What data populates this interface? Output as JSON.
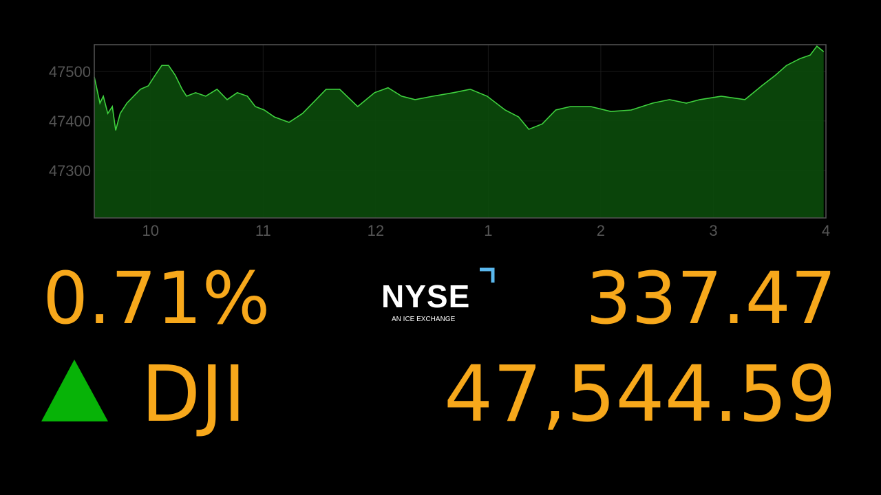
{
  "chart_data": {
    "type": "area",
    "x": [
      9.5,
      9.55,
      9.58,
      9.62,
      9.66,
      9.69,
      9.73,
      9.79,
      9.85,
      9.91,
      9.98,
      10.04,
      10.1,
      10.16,
      10.22,
      10.28,
      10.32,
      10.4,
      10.49,
      10.59,
      10.68,
      10.77,
      10.86,
      10.93,
      11.01,
      11.1,
      11.23,
      11.35,
      11.47,
      11.56,
      11.68,
      11.84,
      11.99,
      12.11,
      12.23,
      12.35,
      12.51,
      12.69,
      12.84,
      12.99,
      13.15,
      13.27,
      13.36,
      13.48,
      13.6,
      13.73,
      13.91,
      14.09,
      14.27,
      14.46,
      14.61,
      14.76,
      14.88,
      15.07,
      15.28,
      15.43,
      15.55,
      15.65,
      15.77,
      15.86,
      15.92,
      15.98
    ],
    "values": [
      47489,
      47436,
      47450,
      47415,
      47429,
      47381,
      47415,
      47436,
      47450,
      47464,
      47471,
      47492,
      47512,
      47512,
      47492,
      47464,
      47450,
      47457,
      47450,
      47464,
      47443,
      47457,
      47450,
      47429,
      47422,
      47408,
      47397,
      47415,
      47443,
      47464,
      47464,
      47429,
      47457,
      47467,
      47450,
      47443,
      47450,
      47457,
      47464,
      47450,
      47422,
      47408,
      47383,
      47394,
      47422,
      47429,
      47429,
      47419,
      47422,
      47436,
      47443,
      47436,
      47443,
      47450,
      47443,
      47471,
      47492,
      47512,
      47526,
      47533,
      47551,
      47540
    ],
    "color": "#3fd23f",
    "fill": "#0b4a0b",
    "xlim": [
      9.5,
      16
    ],
    "xticks": [
      10,
      11,
      12,
      {
        "value": 13,
        "label": "1"
      },
      {
        "value": 14,
        "label": "2"
      },
      {
        "value": 15,
        "label": "3"
      },
      {
        "value": 16,
        "label": "4"
      }
    ],
    "ylim": [
      47204,
      47554
    ],
    "yticks": [
      47300,
      47400,
      47500
    ],
    "grid": true
  },
  "ticker": {
    "change_percent": "0.71%",
    "change_points": "337.47",
    "symbol": "DJI",
    "last": "47,544.59",
    "exchange": "NYSE",
    "exchange_tagline": "AN ICE EXCHANGE"
  }
}
